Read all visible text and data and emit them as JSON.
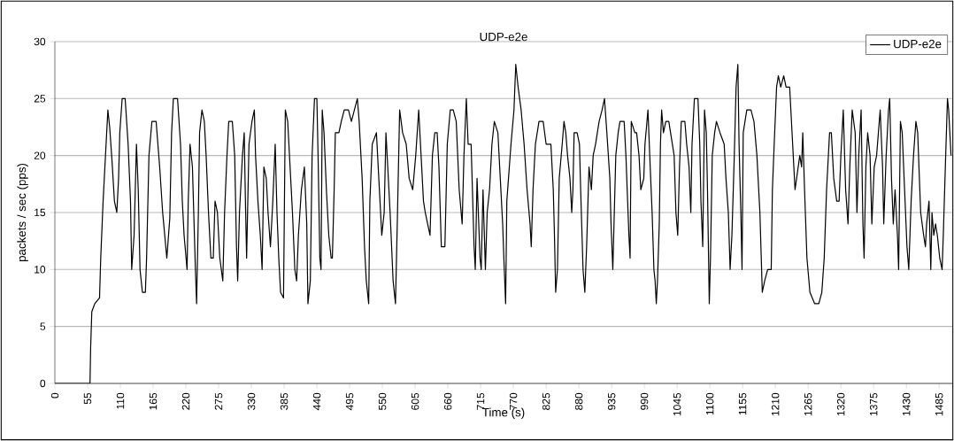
{
  "chart_data": {
    "type": "line",
    "title": "UDP-e2e",
    "xlabel": "Time (s)",
    "ylabel": "packets / sec (pps)",
    "xlim": [
      0,
      1507
    ],
    "ylim": [
      0,
      30
    ],
    "xticks": [
      0,
      55,
      110,
      165,
      220,
      275,
      330,
      385,
      440,
      495,
      550,
      605,
      660,
      715,
      770,
      825,
      880,
      935,
      990,
      1045,
      1100,
      1155,
      1210,
      1265,
      1320,
      1375,
      1430,
      1485
    ],
    "yticks": [
      0,
      5,
      10,
      15,
      20,
      25,
      30
    ],
    "grid": "y",
    "legend": "top right",
    "marker": "none",
    "line_style": "solid",
    "series": [
      {
        "name": "UDP-e2e",
        "color": "#000000",
        "x": [
          0,
          59,
          60,
          62,
          67,
          75,
          77,
          81,
          85,
          89,
          92,
          96,
          100,
          104,
          107,
          109,
          113,
          118,
          123,
          127,
          129,
          133,
          137,
          140,
          143,
          147,
          152,
          154,
          158,
          163,
          170,
          176,
          181,
          188,
          193,
          196,
          199,
          206,
          211,
          214,
          217,
          222,
          224,
          227,
          231,
          236,
          238,
          241,
          243,
          247,
          251,
          254,
          258,
          262,
          266,
          269,
          273,
          277,
          282,
          285,
          289,
          292,
          298,
          302,
          305,
          307,
          310,
          315,
          318,
          320,
          322,
          326,
          331,
          335,
          337,
          341,
          345,
          348,
          351,
          355,
          358,
          362,
          366,
          370,
          373,
          376,
          379,
          384,
          387,
          391,
          396,
          399,
          403,
          406,
          409,
          414,
          419,
          423,
          425,
          429,
          432,
          436,
          440,
          442,
          445,
          447,
          449,
          452,
          456,
          460,
          464,
          466,
          469,
          471,
          477,
          481,
          486,
          493,
          498,
          503,
          508,
          511,
          516,
          520,
          523,
          527,
          529,
          533,
          540,
          544,
          549,
          553,
          556,
          559,
          563,
          568,
          572,
          575,
          579,
          584,
          590,
          595,
          601,
          606,
          611,
          615,
          619,
          622,
          626,
          630,
          634,
          638,
          642,
          645,
          649,
          655,
          659,
          664,
          669,
          674,
          679,
          684,
          687,
          691,
          694,
          699,
          704,
          706,
          709,
          714,
          716,
          719,
          723,
          726,
          730,
          734,
          738,
          744,
          748,
          752,
          754,
          757,
          759,
          766,
          771,
          774,
          778,
          783,
          788,
          793,
          798,
          800,
          803,
          807,
          813,
          820,
          825,
          833,
          837,
          839,
          841,
          844,
          847,
          852,
          855,
          858,
          861,
          865,
          868,
          870,
          872,
          877,
          881,
          883,
          887,
          890,
          893,
          897,
          901,
          904,
          908,
          914,
          919,
          923,
          927,
          932,
          934,
          937,
          939,
          942,
          946,
          949,
          956,
          959,
          964,
          966,
          968,
          974,
          977,
          981,
          984,
          989,
          991,
          996,
          999,
          1003,
          1006,
          1008,
          1010,
          1012,
          1015,
          1017,
          1019,
          1022,
          1026,
          1031,
          1040,
          1043,
          1046,
          1049,
          1052,
          1058,
          1061,
          1065,
          1068,
          1070,
          1074,
          1080,
          1083,
          1085,
          1088,
          1091,
          1094,
          1096,
          1099,
          1101,
          1104,
          1108,
          1111,
          1117,
          1124,
          1127,
          1131,
          1134,
          1137,
          1141,
          1144,
          1147,
          1149,
          1152,
          1154,
          1156,
          1159,
          1162,
          1169,
          1174,
          1179,
          1184,
          1188,
          1192,
          1197,
          1203,
          1205,
          1208,
          1212,
          1215,
          1219,
          1224,
          1228,
          1234,
          1238,
          1243,
          1251,
          1254,
          1256,
          1259,
          1263,
          1268,
          1276,
          1283,
          1288,
          1292,
          1296,
          1301,
          1304,
          1308,
          1313,
          1317,
          1320,
          1324,
          1328,
          1332,
          1335,
          1339,
          1344,
          1347,
          1350,
          1354,
          1357,
          1359,
          1362,
          1365,
          1369,
          1372,
          1376,
          1380,
          1383,
          1386,
          1390,
          1392,
          1396,
          1400,
          1402,
          1405,
          1408,
          1411,
          1415,
          1417,
          1420,
          1423,
          1427,
          1431,
          1434,
          1438,
          1442,
          1446,
          1449,
          1454,
          1459,
          1462,
          1464,
          1468,
          1471,
          1473,
          1476,
          1479,
          1482,
          1486,
          1490,
          1492,
          1496,
          1499,
          1501,
          1505
        ],
        "values": [
          0,
          0,
          3,
          6.3,
          7,
          7.5,
          11,
          16,
          20,
          24,
          22.5,
          19.5,
          16,
          15,
          18,
          22,
          25,
          25,
          21,
          16,
          10,
          13,
          21,
          17,
          10,
          8,
          8,
          11,
          20,
          23,
          23,
          19,
          15,
          11,
          14.5,
          22,
          25,
          25,
          21,
          16,
          13,
          10,
          16,
          21,
          19,
          10,
          7,
          15,
          22,
          24,
          23,
          20,
          15,
          11,
          11,
          16,
          15,
          11,
          9,
          15,
          20,
          23,
          23,
          20,
          12,
          9,
          15,
          20,
          22,
          16,
          11,
          21,
          23,
          24,
          20,
          16,
          13,
          10,
          19,
          18,
          15,
          12,
          16,
          21,
          15,
          11,
          8,
          7.5,
          24,
          23,
          18,
          15,
          10,
          9,
          13,
          17,
          19,
          14,
          7,
          9,
          20,
          25,
          25,
          20,
          11,
          10,
          24,
          22,
          17,
          13,
          11,
          11,
          17,
          22,
          22,
          23,
          24,
          24,
          23,
          24,
          25,
          23,
          18,
          12,
          9,
          7,
          16,
          21,
          22,
          18,
          13,
          15,
          22,
          19,
          15,
          9,
          7,
          14,
          24,
          22,
          21,
          18,
          17,
          20,
          24,
          20,
          16,
          15,
          14,
          13,
          20,
          22,
          22,
          19,
          12,
          12,
          21,
          24,
          24,
          23,
          17,
          14,
          20,
          25,
          21,
          21,
          12,
          10,
          18,
          11,
          10,
          17,
          10,
          15,
          17,
          21,
          23,
          22,
          18,
          14,
          11,
          7,
          16,
          21,
          24,
          28,
          26,
          24,
          21,
          17,
          14,
          12,
          17,
          21,
          23,
          23,
          21,
          21,
          17,
          13,
          8,
          10,
          18,
          21,
          23,
          22,
          20,
          18,
          15,
          17,
          22,
          22,
          21,
          17,
          10,
          8,
          12,
          19,
          17,
          20,
          21,
          23,
          24,
          25,
          22,
          18,
          14,
          10,
          14,
          20,
          22,
          23,
          23,
          20,
          13,
          11,
          23,
          22,
          22,
          20,
          17,
          18,
          21,
          24,
          20,
          15,
          10,
          9,
          7,
          9,
          14,
          21,
          24,
          22,
          23,
          23,
          20,
          15,
          13,
          19,
          23,
          23,
          21,
          19,
          15,
          21,
          25,
          25,
          21,
          16,
          12,
          24,
          22,
          17,
          7,
          11,
          20,
          22,
          23,
          22,
          21,
          18,
          15,
          10,
          13,
          20,
          26,
          28,
          21,
          15,
          10,
          22,
          23,
          24,
          24,
          23,
          20,
          15,
          8,
          9,
          10,
          10,
          17,
          21,
          26,
          27,
          26,
          27,
          26,
          26,
          22,
          17,
          20,
          19,
          22,
          17,
          11,
          8,
          7,
          7,
          8,
          11,
          17,
          22,
          22,
          18,
          16,
          16,
          20,
          24,
          17,
          14,
          19,
          24,
          22,
          15,
          20,
          24,
          14,
          11,
          19,
          22,
          20,
          14,
          19,
          20,
          22,
          24,
          19,
          14,
          20,
          24,
          25,
          18,
          14,
          17,
          13,
          10,
          23,
          22,
          17,
          12,
          10,
          16,
          20,
          23,
          22,
          15,
          13,
          12,
          14,
          16,
          10,
          15,
          13,
          14,
          13,
          11,
          10,
          13,
          20,
          25,
          24,
          20
        ]
      }
    ]
  }
}
